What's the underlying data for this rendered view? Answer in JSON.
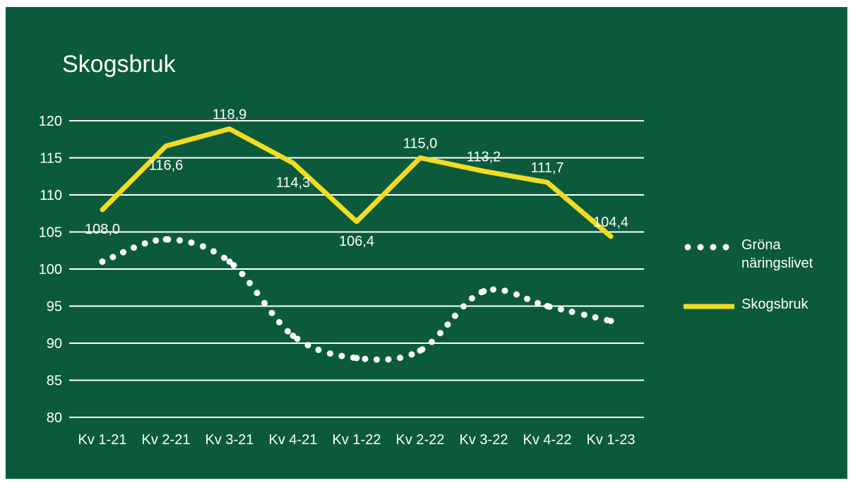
{
  "chart_data": {
    "type": "line",
    "title": "Skogsbruk",
    "xlabel": "",
    "ylabel": "",
    "categories": [
      "Kv 1-21",
      "Kv 2-21",
      "Kv 3-21",
      "Kv 4-21",
      "Kv 1-22",
      "Kv 2-22",
      "Kv 3-22",
      "Kv 4-22",
      "Kv 1-23"
    ],
    "ylim": [
      80,
      120
    ],
    "yticks": [
      80,
      85,
      90,
      95,
      100,
      105,
      110,
      115,
      120
    ],
    "grid": true,
    "legend_position": "right",
    "series": [
      {
        "name": "Gröna näringslivet",
        "style": "dotted",
        "color": "#ffffff",
        "values": [
          101.0,
          104.0,
          101.0,
          91.0,
          88.0,
          89.0,
          97.0,
          95.0,
          93.0
        ]
      },
      {
        "name": "Skogsbruk",
        "style": "solid",
        "color": "#f2dc23",
        "values": [
          108.0,
          116.6,
          118.9,
          114.3,
          106.4,
          115.0,
          113.2,
          111.7,
          104.4
        ],
        "data_labels": [
          "108,0",
          "116,6",
          "118,9",
          "114,3",
          "106,4",
          "115,0",
          "113,2",
          "111,7",
          "104,4"
        ]
      }
    ]
  },
  "colors": {
    "background": "#0b5a3b",
    "gridline": "#ffffff",
    "text": "#ffffff",
    "accent": "#f2dc23"
  }
}
